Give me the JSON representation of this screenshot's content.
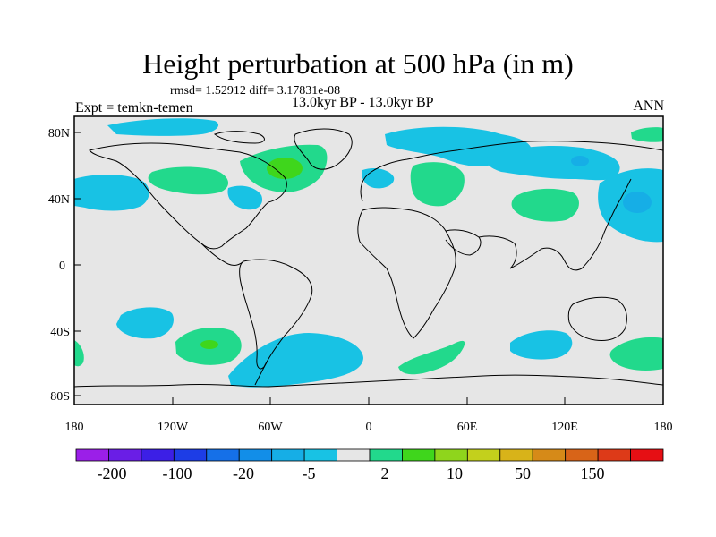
{
  "title": "Height perturbation at 500 hPa (in m)",
  "stats_line": "rmsd= 1.52912 diff= 3.17831e-08",
  "period": "13.0kyr BP - 13.0kyr BP",
  "experiment": "Expt = temkn-temen",
  "season": "ANN",
  "map": {
    "background_color": "#e6e6e6",
    "lat_ticks": [
      "80N",
      "40N",
      "0",
      "40S",
      "80S"
    ],
    "lon_ticks": [
      "180",
      "120W",
      "60W",
      "0",
      "60E",
      "120E",
      "180"
    ]
  },
  "colorbar": {
    "colors": [
      "#9b1fe8",
      "#6a1ee6",
      "#3c1fe6",
      "#1d3de6",
      "#1570e8",
      "#128ee8",
      "#16aee6",
      "#18c2e4",
      "#e6e6e6",
      "#22d98c",
      "#3fd61c",
      "#8fd51c",
      "#c3d01c",
      "#d8b319",
      "#d68a18",
      "#d86418",
      "#dd3a18",
      "#e60f14"
    ],
    "labels": [
      "-200",
      "-100",
      "-20",
      "-5",
      "2",
      "10",
      "50",
      "150"
    ]
  },
  "fields": {
    "positive_light_color": "#22d98c",
    "positive_dark_color": "#3fd61c",
    "negative_light_color": "#18c2e4",
    "negative_dark_color": "#16aee6"
  }
}
